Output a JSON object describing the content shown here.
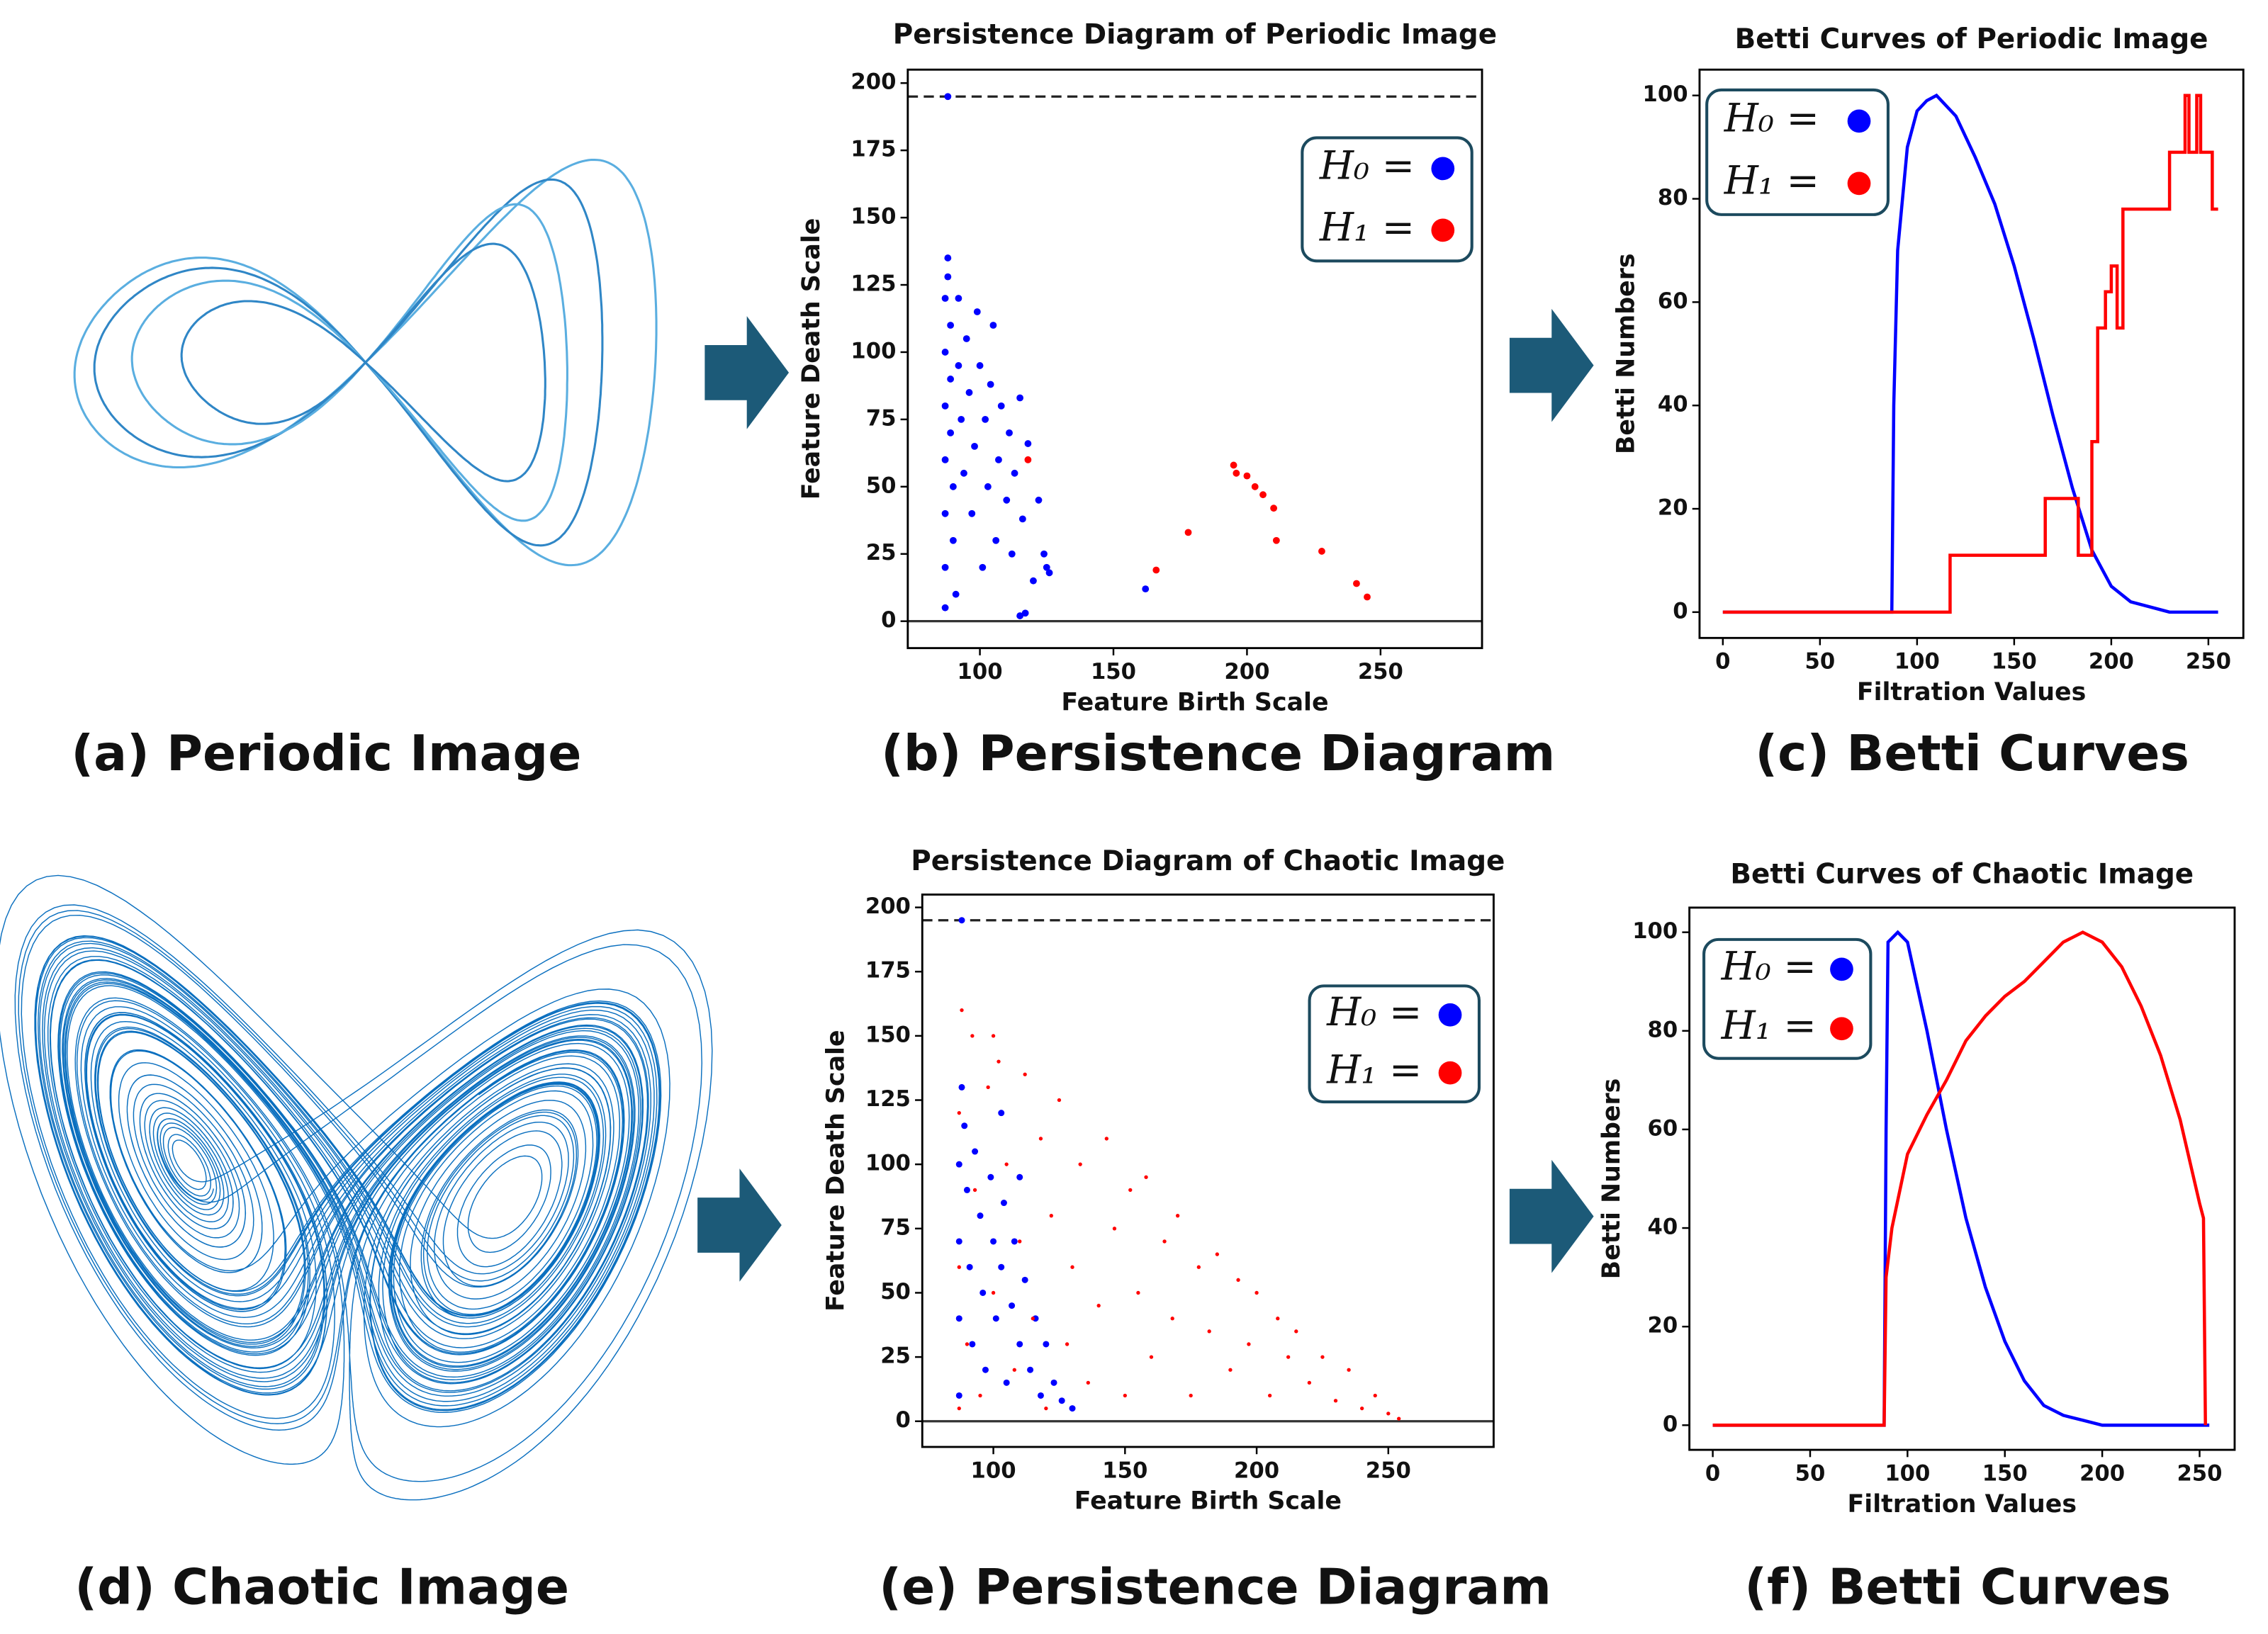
{
  "captions": [
    "(a) Periodic Image",
    "(b) Persistence Diagram",
    "(c) Betti Curves",
    "(d) Chaotic Image",
    "(e) Persistence Diagram",
    "(f) Betti Curves"
  ],
  "chart_data": [
    {
      "type": "scatter",
      "title": "Persistence Diagram of Periodic Image",
      "xlabel": "Feature Birth Scale",
      "ylabel": "Feature Death Scale",
      "xlim": [
        73,
        288
      ],
      "ylim": [
        -10,
        205
      ],
      "xticks": [
        100,
        150,
        200,
        250
      ],
      "yticks": [
        0,
        25,
        50,
        75,
        100,
        125,
        150,
        175,
        200
      ],
      "reference_lines": [
        {
          "y": 195,
          "style": "dashed"
        },
        {
          "y": 0,
          "style": "solid"
        }
      ],
      "series": [
        {
          "name": "H₀ =",
          "color": "#0000ff",
          "x": [
            88,
            162,
            87,
            87,
            87,
            87,
            87,
            87,
            87,
            88,
            88,
            89,
            89,
            89,
            90,
            90,
            91,
            92,
            92,
            93,
            94,
            95,
            96,
            97,
            98,
            99,
            100,
            101,
            102,
            103,
            104,
            105,
            106,
            107,
            108,
            110,
            111,
            112,
            113,
            115,
            116,
            118,
            120,
            122,
            124,
            125,
            126,
            117,
            115
          ],
          "values": [
            195,
            12,
            5,
            20,
            40,
            60,
            80,
            100,
            120,
            135,
            128,
            110,
            90,
            70,
            50,
            30,
            10,
            120,
            95,
            75,
            55,
            105,
            85,
            40,
            65,
            115,
            95,
            20,
            75,
            50,
            88,
            110,
            30,
            60,
            80,
            45,
            70,
            25,
            55,
            83,
            38,
            66,
            15,
            45,
            25,
            20,
            18,
            3,
            2
          ]
        },
        {
          "name": "H₁ =",
          "color": "#ff0000",
          "x": [
            118,
            166,
            178,
            195,
            196,
            200,
            203,
            206,
            210,
            211,
            228,
            241,
            245
          ],
          "values": [
            60,
            19,
            33,
            58,
            55,
            54,
            50,
            47,
            42,
            30,
            26,
            14,
            9
          ]
        }
      ]
    },
    {
      "type": "line",
      "title": "Betti Curves of Periodic Image",
      "xlabel": "Filtration Values",
      "ylabel": "Betti Numbers",
      "xlim": [
        -12,
        268
      ],
      "ylim": [
        -5,
        105
      ],
      "xticks": [
        0,
        50,
        100,
        150,
        200,
        250
      ],
      "yticks": [
        0,
        20,
        40,
        60,
        80,
        100
      ],
      "series": [
        {
          "name": "H₀ =",
          "color": "#0000ff",
          "x": [
            0,
            87,
            88,
            90,
            95,
            100,
            105,
            110,
            120,
            130,
            140,
            150,
            160,
            170,
            180,
            190,
            200,
            210,
            220,
            230,
            240,
            255
          ],
          "values": [
            0,
            0,
            40,
            70,
            90,
            97,
            99,
            100,
            96,
            88,
            79,
            67,
            53,
            38,
            24,
            12,
            5,
            2,
            1,
            0,
            0,
            0
          ]
        },
        {
          "name": "H₁ =",
          "color": "#ff0000",
          "x": [
            0,
            117,
            117,
            166,
            166,
            183,
            183,
            190,
            190,
            193,
            193,
            197,
            197,
            200,
            200,
            203,
            203,
            206,
            206,
            230,
            230,
            238,
            238,
            240,
            240,
            244,
            244,
            246,
            246,
            252,
            252,
            255
          ],
          "values": [
            0,
            0,
            11,
            11,
            22,
            22,
            11,
            11,
            33,
            33,
            55,
            55,
            62,
            62,
            67,
            67,
            55,
            55,
            78,
            78,
            89,
            89,
            100,
            100,
            89,
            89,
            100,
            100,
            89,
            89,
            78,
            78
          ]
        }
      ]
    },
    {
      "type": "scatter",
      "title": "Persistence Diagram of Chaotic Image",
      "xlabel": "Feature Birth Scale",
      "ylabel": "Feature Death Scale",
      "xlim": [
        73,
        290
      ],
      "ylim": [
        -10,
        205
      ],
      "xticks": [
        100,
        150,
        200,
        250
      ],
      "yticks": [
        0,
        25,
        50,
        75,
        100,
        125,
        150,
        175,
        200
      ],
      "reference_lines": [
        {
          "y": 195,
          "style": "dashed"
        },
        {
          "y": 0,
          "style": "solid"
        }
      ],
      "series": [
        {
          "name": "H₀ =",
          "color": "#0000ff",
          "x": [
            88,
            87,
            87,
            87,
            87,
            88,
            89,
            90,
            91,
            92,
            93,
            95,
            96,
            97,
            99,
            100,
            101,
            103,
            104,
            105,
            107,
            108,
            110,
            112,
            114,
            116,
            118,
            120,
            123,
            126,
            130,
            103,
            110
          ],
          "values": [
            195,
            10,
            40,
            70,
            100,
            130,
            115,
            90,
            60,
            30,
            105,
            80,
            50,
            20,
            95,
            70,
            40,
            60,
            85,
            15,
            45,
            70,
            30,
            55,
            20,
            40,
            10,
            30,
            15,
            8,
            5,
            120,
            95
          ]
        },
        {
          "name": "H₁ =",
          "color": "#ff0000",
          "x": [
            87,
            87,
            87,
            88,
            90,
            92,
            93,
            95,
            98,
            100,
            100,
            102,
            105,
            108,
            110,
            112,
            115,
            118,
            120,
            122,
            125,
            128,
            130,
            133,
            136,
            140,
            143,
            146,
            150,
            152,
            155,
            158,
            160,
            165,
            168,
            170,
            175,
            178,
            182,
            185,
            190,
            193,
            197,
            200,
            205,
            208,
            212,
            215,
            220,
            225,
            230,
            235,
            240,
            245,
            250,
            254
          ],
          "values": [
            5,
            60,
            120,
            160,
            30,
            150,
            90,
            10,
            130,
            50,
            150,
            140,
            100,
            20,
            70,
            135,
            40,
            110,
            5,
            80,
            125,
            30,
            60,
            100,
            15,
            45,
            110,
            75,
            10,
            90,
            50,
            95,
            25,
            70,
            40,
            80,
            10,
            60,
            35,
            65,
            20,
            55,
            30,
            50,
            10,
            40,
            25,
            35,
            15,
            25,
            8,
            20,
            5,
            10,
            3,
            1
          ]
        }
      ]
    },
    {
      "type": "line",
      "title": "Betti Curves of Chaotic Image",
      "xlabel": "Filtration Values",
      "ylabel": "Betti Numbers",
      "xlim": [
        -12,
        268
      ],
      "ylim": [
        -5,
        105
      ],
      "xticks": [
        0,
        50,
        100,
        150,
        200,
        250
      ],
      "yticks": [
        0,
        20,
        40,
        60,
        80,
        100
      ],
      "series": [
        {
          "name": "H₀ =",
          "color": "#0000ff",
          "x": [
            0,
            88,
            89,
            90,
            95,
            100,
            110,
            120,
            130,
            140,
            150,
            160,
            170,
            180,
            190,
            200,
            255
          ],
          "values": [
            0,
            0,
            60,
            98,
            100,
            98,
            80,
            60,
            42,
            28,
            17,
            9,
            4,
            2,
            1,
            0,
            0
          ]
        },
        {
          "name": "H₁ =",
          "color": "#ff0000",
          "x": [
            0,
            88,
            89,
            92,
            100,
            110,
            120,
            130,
            140,
            150,
            160,
            170,
            180,
            190,
            200,
            210,
            220,
            230,
            240,
            250,
            252,
            253
          ],
          "values": [
            0,
            0,
            30,
            40,
            55,
            63,
            70,
            78,
            83,
            87,
            90,
            94,
            98,
            100,
            98,
            93,
            85,
            75,
            62,
            45,
            42,
            0
          ]
        }
      ]
    }
  ]
}
